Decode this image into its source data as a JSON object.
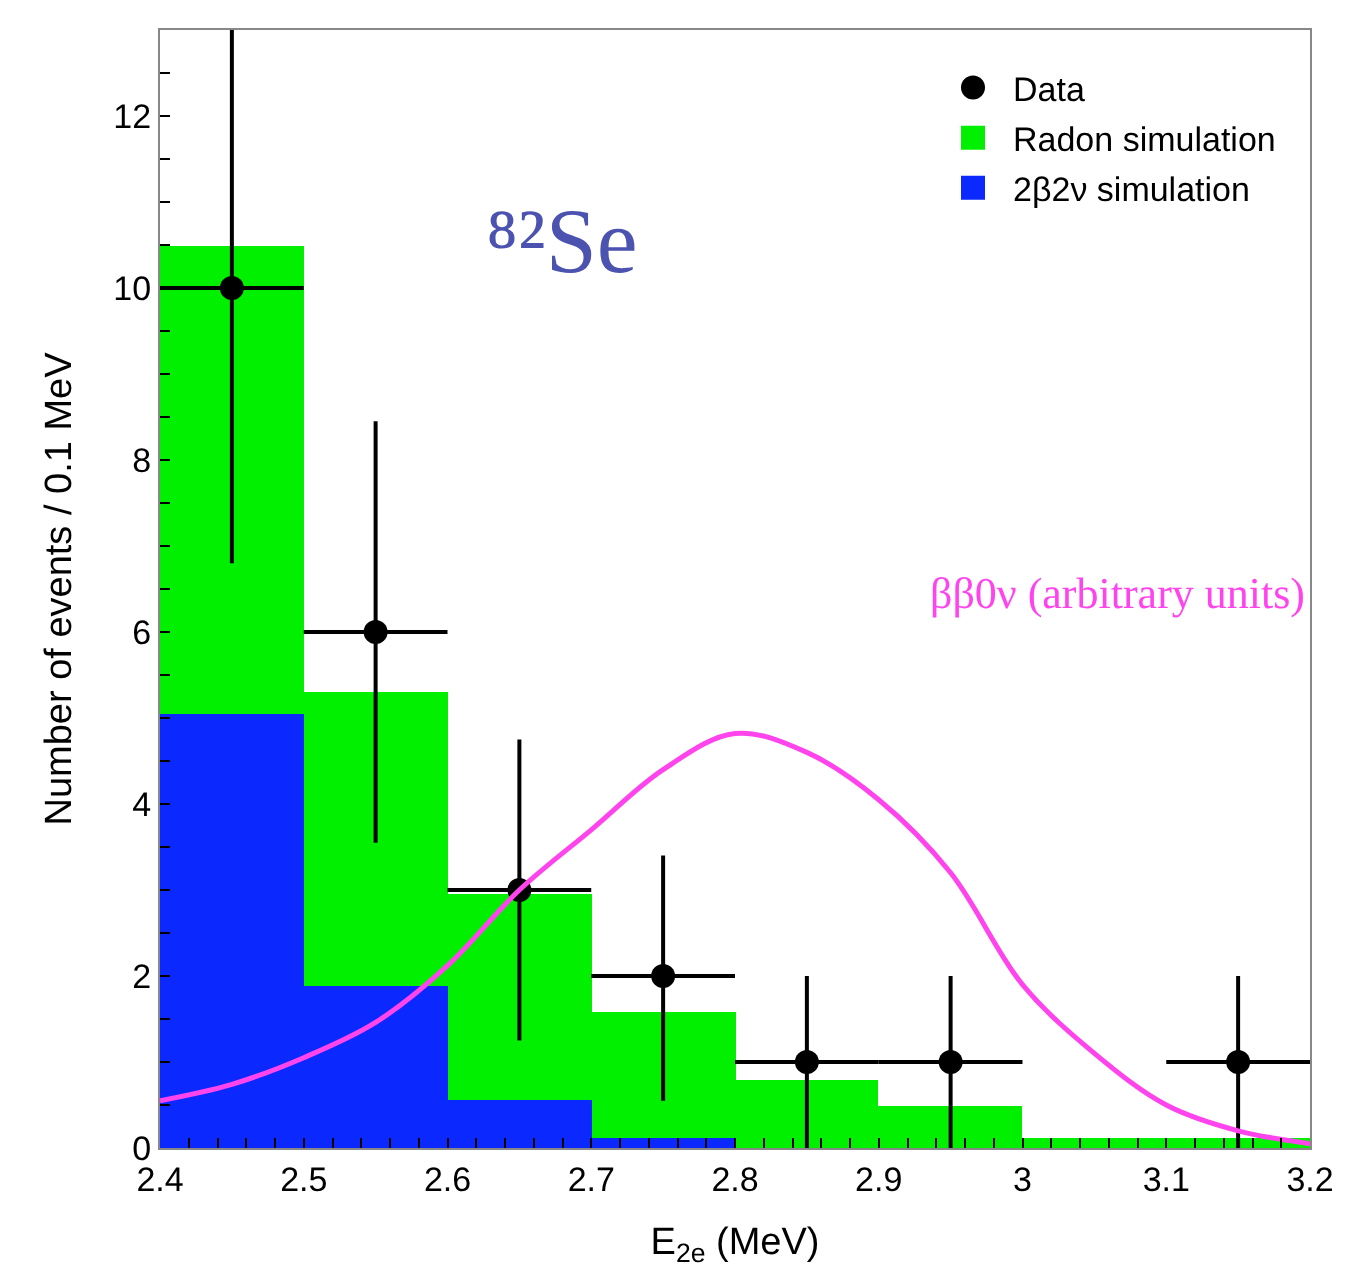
{
  "chart_data": {
    "type": "bar",
    "stacked": true,
    "xlabel": "E$_{2e}$ (MeV)",
    "ylabel": "Number of events / 0.1 MeV",
    "x": [
      2.45,
      2.55,
      2.65,
      2.75,
      2.85,
      2.95,
      3.05,
      3.15
    ],
    "series": [
      {
        "name": "2β2ν simulation",
        "color": "#0a28ff",
        "values": [
          5.05,
          1.88,
          0.55,
          0.12,
          0,
          0,
          0,
          0
        ]
      },
      {
        "name": "Radon simulation",
        "color": "#00f000",
        "values": [
          5.45,
          3.42,
          2.4,
          1.46,
          0.8,
          0.48,
          0.12,
          0.12
        ]
      },
      {
        "name": "Data",
        "type": "scatter",
        "color": "#000000",
        "x": [
          2.45,
          2.55,
          2.65,
          2.75,
          2.85,
          2.95,
          3.15
        ],
        "values": [
          10,
          6,
          3,
          2,
          1,
          1,
          1
        ],
        "errors": [
          [
            6.8,
            13
          ],
          [
            3.55,
            8.45
          ],
          [
            1.25,
            4.75
          ],
          [
            0.55,
            3.4
          ],
          [
            0,
            2
          ],
          [
            0,
            2
          ],
          [
            0,
            2
          ]
        ],
        "xerrors": [
          0.05,
          0.05,
          0.05,
          0.05,
          0.05,
          0.05,
          0.05
        ]
      },
      {
        "name": "ββ0ν (arbitrary units)",
        "type": "line",
        "color": "#ff44ee",
        "x": [
          2.4,
          2.45,
          2.5,
          2.55,
          2.6,
          2.65,
          2.7,
          2.75,
          2.8,
          2.85,
          2.9,
          2.95,
          3.0,
          3.05,
          3.1,
          3.15,
          3.2
        ],
        "values": [
          0.55,
          0.74,
          1.05,
          1.46,
          2.12,
          3.0,
          3.7,
          4.4,
          4.82,
          4.6,
          4.05,
          3.2,
          1.9,
          1.1,
          0.5,
          0.2,
          0.05
        ]
      }
    ],
    "annotations": [
      "⁸²Se"
    ],
    "xlim": [
      2.4,
      3.2
    ],
    "xticks": [
      2.4,
      2.5,
      2.6,
      2.7,
      2.8,
      2.9,
      3,
      3.1,
      3.2
    ],
    "ylim": [
      0,
      13
    ],
    "yticks": [
      0,
      2,
      4,
      6,
      8,
      10,
      12
    ],
    "legend": "top right"
  }
}
